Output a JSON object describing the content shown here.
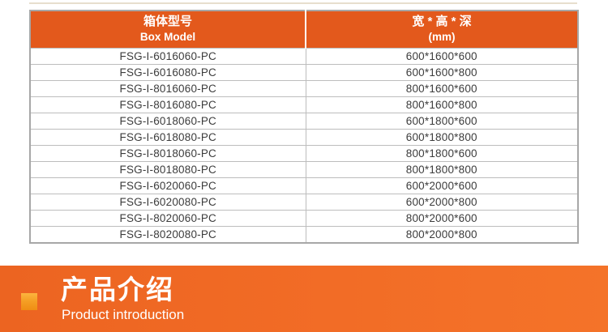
{
  "table": {
    "columns": [
      {
        "title_zh": "箱体型号",
        "title_en": "Box Model"
      },
      {
        "title_zh": "宽 * 高 * 深",
        "title_en": "(mm)"
      }
    ],
    "rows": [
      {
        "model": "FSG-I-6016060-PC",
        "size": "600*1600*600"
      },
      {
        "model": "FSG-I-6016080-PC",
        "size": "600*1600*800"
      },
      {
        "model": "FSG-I-8016060-PC",
        "size": "800*1600*600"
      },
      {
        "model": "FSG-I-8016080-PC",
        "size": "800*1600*800"
      },
      {
        "model": "FSG-I-6018060-PC",
        "size": "600*1800*600"
      },
      {
        "model": "FSG-I-6018080-PC",
        "size": "600*1800*800"
      },
      {
        "model": "FSG-I-8018060-PC",
        "size": "800*1800*600"
      },
      {
        "model": "FSG-I-8018080-PC",
        "size": "800*1800*800"
      },
      {
        "model": "FSG-I-6020060-PC",
        "size": "600*2000*600"
      },
      {
        "model": "FSG-I-6020080-PC",
        "size": "600*2000*800"
      },
      {
        "model": "FSG-I-8020060-PC",
        "size": "800*2000*600"
      },
      {
        "model": "FSG-I-8020080-PC",
        "size": "800*2000*800"
      }
    ]
  },
  "banner": {
    "title": "产品介绍",
    "subtitle": "Product introduction"
  },
  "colors": {
    "header_orange": "#e3591c",
    "banner_gradient_start": "#ec6421",
    "banner_gradient_end": "#f47329",
    "marker_gradient_start": "#fcb43e",
    "marker_gradient_end": "#ef8d14",
    "outer_border_gray": "#a7a7a7",
    "row_line_gray": "#bdbdbd",
    "top_line_cream": "#e7dfcd",
    "body_text": "#3c3c3c"
  }
}
